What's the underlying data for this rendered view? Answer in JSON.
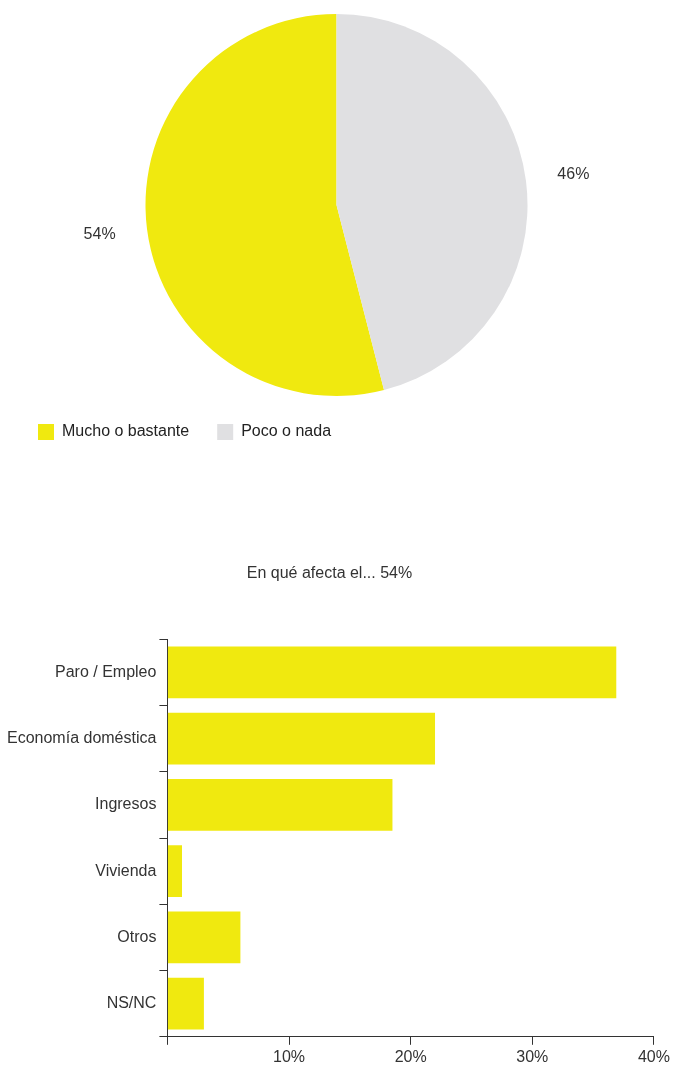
{
  "chart_data": [
    {
      "type": "pie",
      "categories": [
        "Mucho o bastante",
        "Poco o nada"
      ],
      "values": [
        54,
        46
      ],
      "colors": [
        "#f0e90f",
        "#e0e0e2"
      ],
      "value_labels": [
        "54%",
        "46%"
      ],
      "legend": "bottom left"
    },
    {
      "type": "bar",
      "title": "En qué afecta el... 54%",
      "orientation": "horizontal",
      "categories": [
        "Paro / Empleo",
        "Economía doméstica",
        "Ingresos",
        "Vivienda",
        "Otros",
        "NS/NC"
      ],
      "values": [
        36.9,
        22,
        18.5,
        1.2,
        6,
        3
      ],
      "color": "#f0e90f",
      "xlim": [
        0,
        40
      ],
      "xticks": [
        {
          "value": 0,
          "label": null
        },
        {
          "value": 10,
          "label": "10%"
        },
        {
          "value": 20,
          "label": "20%"
        },
        {
          "value": 30,
          "label": "30%"
        },
        {
          "value": 40,
          "label": "40%"
        }
      ],
      "grid": false
    }
  ]
}
